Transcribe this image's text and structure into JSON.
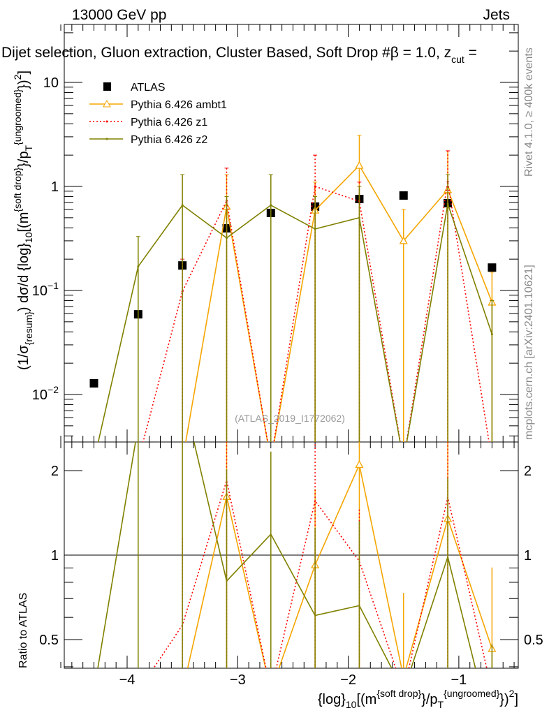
{
  "chart_data": [
    {
      "type": "line",
      "panel": "main",
      "header_left": "13000 GeV pp",
      "header_right": "Jets",
      "title": "Dijet selection, Gluon extraction, Cluster Based, Soft Drop #β = 1.0, z",
      "title_sub": "cut",
      "title_tail": " =",
      "ylabel_parts": [
        [
          "(1/σ",
          ""
        ],
        [
          "{resum}",
          "sub"
        ],
        [
          ") dσ/d {log}",
          ""
        ],
        [
          "10",
          "sub"
        ],
        [
          "[(m",
          ""
        ],
        [
          "{soft drop}",
          "sup"
        ],
        [
          "}/p",
          ""
        ],
        [
          "T",
          "sub"
        ],
        [
          "{ungroomed}",
          "sup"
        ],
        [
          "})",
          ""
        ],
        [
          "2",
          "sup"
        ],
        [
          "]",
          ""
        ]
      ],
      "yscale": "log",
      "ylim": [
        0.0035,
        36
      ],
      "xlim": [
        -4.57,
        -0.46
      ],
      "ytick_labels": [
        {
          "v": 10,
          "base": "10",
          "exp": ""
        },
        {
          "v": 1,
          "base": "1",
          "exp": ""
        },
        {
          "v": 0.1,
          "base": "10",
          "exp": "−1"
        },
        {
          "v": 0.01,
          "base": "10",
          "exp": "−2"
        }
      ],
      "watermark": "(ATLAS_2019_I1772062)",
      "side_text_top": "Rivet 4.1.0, ≥ 400k events",
      "side_text_bottom": "mcplots.cern.ch [arXiv:2401.10621]",
      "legend_position": "top-left",
      "x": [
        -4.3,
        -3.9,
        -3.5,
        -3.1,
        -2.7,
        -2.3,
        -1.9,
        -1.5,
        -1.1,
        -0.7
      ],
      "series": [
        {
          "name": "ATLAS",
          "color": "#000000",
          "style": "marker",
          "values": [
            0.0128,
            0.059,
            0.174,
            0.396,
            0.556,
            0.64,
            0.757,
            0.818,
            0.69,
            0.166
          ],
          "err_up": [
            null,
            null,
            null,
            null,
            null,
            null,
            null,
            null,
            null,
            null
          ]
        },
        {
          "name": "Pythia 6.426 ambt1",
          "color": "#f5a500",
          "style": "solid-triangle",
          "values": [
            0,
            0,
            0,
            0.64,
            0,
            0.59,
            1.59,
            0.3,
            0.93,
            0.077
          ],
          "err_up": [
            null,
            null,
            null,
            1.3,
            null,
            1.1,
            3.1,
            0.6,
            2.2,
            0.15
          ]
        },
        {
          "name": "Pythia 6.426 z1",
          "color": "#ff0000",
          "style": "dotted",
          "values": [
            0,
            0,
            0.098,
            0.73,
            0,
            1.0,
            0.72,
            0,
            1.11,
            0
          ],
          "err_up": [
            null,
            null,
            0.2,
            1.5,
            null,
            2.0,
            1.1,
            null,
            2.2,
            null
          ]
        },
        {
          "name": "Pythia 6.426 z2",
          "color": "#808000",
          "style": "solid-dot",
          "values": [
            0,
            0.17,
            0.66,
            0.32,
            0.66,
            0.39,
            0.5,
            0,
            0.68,
            0.038
          ],
          "err_up": [
            null,
            0.33,
            1.3,
            0.8,
            1.3,
            0.8,
            1.0,
            null,
            1.3,
            0.08
          ]
        }
      ]
    },
    {
      "type": "line",
      "panel": "ratio",
      "ylabel": "Ratio to ATLAS",
      "xlabel_parts": [
        [
          "{log}",
          ""
        ],
        [
          "10",
          "sub"
        ],
        [
          "[(m",
          ""
        ],
        [
          "{soft drop}",
          "sup"
        ],
        [
          "}/p",
          ""
        ],
        [
          "T",
          "sub"
        ],
        [
          "{ungroomed}",
          "sup"
        ],
        [
          "})",
          ""
        ],
        [
          "2",
          "sup"
        ],
        [
          "]",
          ""
        ]
      ],
      "yscale": "log",
      "ylim": [
        0.395,
        2.53
      ],
      "ytick_labels": [
        "0.5",
        "1",
        "2"
      ],
      "ytick_values": [
        0.5,
        1,
        2
      ],
      "xtick_labels": [
        "−4",
        "−3",
        "−2",
        "−1"
      ],
      "xtick_values": [
        -4,
        -3,
        -2,
        -1
      ],
      "reference_line": 1
    }
  ]
}
